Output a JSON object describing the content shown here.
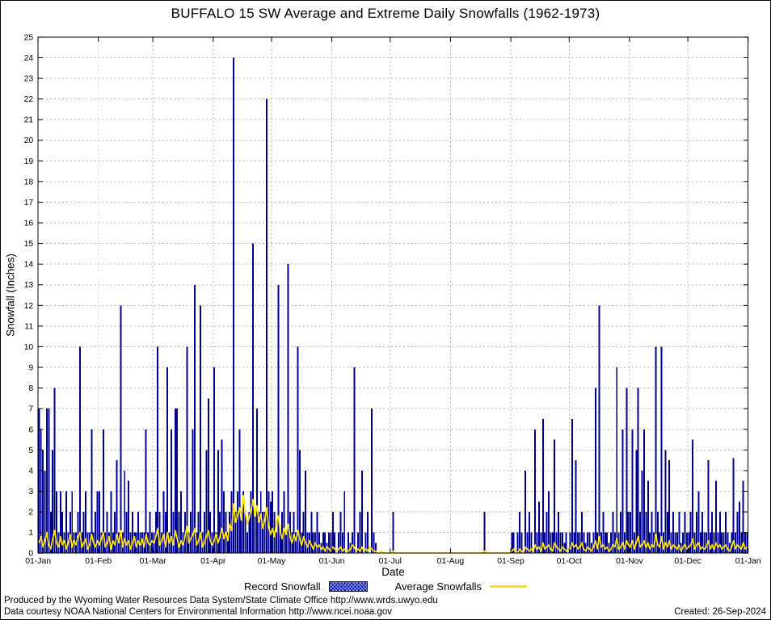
{
  "chart_data": {
    "type": "bar",
    "title": "BUFFALO 15 SW Average and Extreme Daily Snowfalls (1962-1973)",
    "xlabel": "Date",
    "ylabel": "Snowfall (Inches)",
    "ylim": [
      0,
      25
    ],
    "y_tick_step": 1,
    "grid": true,
    "legend_position": "bottom",
    "days_in_year": 365,
    "x_tick_labels": [
      "01-Jan",
      "01-Feb",
      "01-Mar",
      "01-Apr",
      "01-May",
      "01-Jun",
      "01-Jul",
      "01-Aug",
      "01-Sep",
      "01-Oct",
      "01-Nov",
      "01-Dec",
      "01-Jan"
    ],
    "x_tick_days": [
      0,
      31,
      59,
      90,
      120,
      151,
      181,
      212,
      243,
      273,
      304,
      334,
      365
    ],
    "series": [
      {
        "name": "Record Snowfall",
        "type": "bar",
        "color": "#000090",
        "values": [
          7,
          6,
          5,
          4,
          7,
          7,
          2,
          5,
          8,
          3,
          1,
          3,
          2,
          1,
          3,
          1,
          2,
          3,
          1,
          1,
          2,
          10,
          1,
          2,
          3,
          1,
          1,
          6,
          1,
          2,
          3,
          3,
          1,
          6,
          1,
          2,
          1,
          3,
          1,
          2,
          4.5,
          1,
          12,
          1,
          4,
          2,
          3.5,
          1,
          2,
          1,
          1,
          2,
          1,
          1,
          1,
          6,
          1,
          2,
          1,
          1,
          2,
          10,
          2,
          1,
          3,
          2,
          9,
          1,
          6,
          2,
          7,
          7,
          2,
          3,
          1,
          2,
          10,
          1,
          2,
          6,
          13,
          1,
          2,
          12,
          1,
          2,
          5,
          7.5,
          2,
          1,
          9,
          1,
          5,
          2,
          5.5,
          3,
          2,
          1,
          2,
          3,
          24,
          2,
          3,
          6,
          2,
          3,
          2,
          1,
          2,
          3,
          15,
          2,
          7,
          2,
          3,
          2,
          2,
          22,
          3,
          2.5,
          3,
          2,
          1,
          13,
          1,
          2,
          3,
          1,
          14,
          2,
          1,
          2,
          1,
          10,
          5,
          1,
          2,
          4,
          1,
          1,
          2,
          1,
          1,
          2,
          1,
          0.5,
          1,
          1,
          0.5,
          1,
          1,
          2,
          1,
          0,
          1,
          2,
          1,
          3,
          0,
          1,
          0.5,
          1,
          9,
          0,
          1,
          2,
          4,
          0,
          1,
          2,
          0,
          7,
          1,
          0.5,
          0,
          0,
          0,
          0,
          0,
          0,
          0,
          0,
          2,
          0,
          0,
          0,
          0,
          0,
          0,
          0,
          0,
          0,
          0,
          0,
          0,
          0,
          0,
          0,
          0,
          0,
          0,
          0,
          0,
          0,
          0,
          0,
          0,
          0,
          0,
          0,
          0,
          0,
          0,
          0,
          0,
          0,
          0,
          0,
          0,
          0,
          0,
          0,
          0,
          0,
          0,
          0,
          0,
          0,
          0,
          2,
          0,
          0,
          0,
          0,
          0,
          0,
          0,
          0,
          0,
          0,
          0,
          0,
          0,
          1,
          1,
          0,
          1,
          2,
          1,
          0,
          4,
          1,
          2,
          1,
          0,
          6,
          1,
          2.5,
          1,
          6.5,
          1,
          2,
          3,
          1,
          1,
          5.5,
          1,
          2,
          1,
          1,
          0.5,
          1,
          0,
          1,
          6.5,
          1,
          4.5,
          1,
          1,
          2,
          1,
          0.5,
          1,
          1,
          0.5,
          1,
          8,
          1,
          12,
          1,
          2,
          1,
          1,
          0.5,
          1,
          2,
          1,
          9,
          1,
          2,
          6,
          1,
          8,
          2,
          2,
          6,
          1,
          5,
          8,
          2,
          4,
          6,
          2,
          3.5,
          1,
          2,
          1,
          10,
          2,
          1,
          10,
          1,
          5,
          2,
          4.5,
          1,
          2,
          1,
          1,
          2,
          0.5,
          1,
          2,
          1,
          1,
          2,
          5.5,
          1,
          2,
          3,
          1,
          2,
          1,
          1,
          4.5,
          1,
          2,
          1,
          3.5,
          1,
          2,
          1,
          1,
          2,
          1,
          0.5,
          1,
          4.6,
          1,
          2,
          2.5,
          1,
          3.5,
          1,
          1
        ]
      },
      {
        "name": "Average Snowfalls",
        "type": "line",
        "color": "#ffe400",
        "values": [
          0.5,
          0.8,
          0.3,
          0.6,
          1.0,
          0.4,
          0.2,
          0.7,
          1.1,
          0.5,
          0.3,
          0.8,
          0.4,
          0.6,
          0.2,
          0.5,
          0.9,
          0.3,
          0.6,
          0.4,
          0.8,
          1.0,
          0.3,
          0.5,
          0.7,
          0.2,
          0.4,
          0.9,
          0.5,
          0.3,
          0.6,
          0.4,
          0.7,
          1.0,
          0.3,
          0.5,
          0.8,
          0.2,
          0.6,
          0.4,
          0.9,
          0.5,
          1.1,
          0.3,
          0.7,
          0.4,
          0.6,
          0.2,
          0.5,
          0.8,
          0.3,
          0.6,
          0.4,
          0.7,
          0.3,
          0.9,
          0.5,
          0.4,
          0.6,
          0.5,
          0.8,
          1.2,
          0.4,
          0.6,
          0.9,
          0.3,
          1.0,
          0.5,
          0.8,
          0.4,
          1.1,
          0.7,
          0.3,
          0.6,
          0.4,
          0.8,
          1.3,
          0.5,
          0.7,
          0.9,
          1.2,
          0.4,
          0.6,
          1.0,
          0.3,
          0.5,
          0.8,
          1.1,
          0.6,
          0.4,
          0.6,
          0.9,
          0.5,
          0.8,
          1.2,
          0.7,
          1.0,
          0.6,
          1.4,
          1.1,
          2.4,
          1.5,
          1.8,
          2.2,
          1.6,
          2.8,
          2.0,
          1.4,
          1.7,
          2.1,
          2.6,
          1.8,
          2.3,
          1.5,
          1.9,
          1.2,
          1.6,
          2.2,
          1.3,
          0.9,
          1.2,
          0.8,
          1.5,
          1.8,
          1.0,
          0.7,
          1.2,
          0.9,
          1.4,
          0.8,
          0.5,
          0.9,
          0.6,
          1.1,
          0.7,
          0.4,
          0.8,
          0.5,
          0.3,
          0.6,
          0.4,
          0.2,
          0.5,
          0.3,
          0.4,
          0.2,
          0.3,
          0.1,
          0.3,
          0.2,
          0.1,
          0.3,
          0.2,
          0.1,
          0.2,
          0.3,
          0.1,
          0.2,
          0.1,
          0.1,
          0.2,
          0.4,
          0.3,
          0.1,
          0.2,
          0.1,
          0.3,
          0.1,
          0.2,
          0.1,
          0.3,
          0.2,
          0.1,
          0.1,
          0,
          0,
          0.1,
          0,
          0,
          0,
          0,
          0,
          0.1,
          0,
          0,
          0,
          0,
          0,
          0,
          0,
          0,
          0,
          0,
          0,
          0,
          0,
          0,
          0,
          0,
          0,
          0,
          0,
          0,
          0,
          0,
          0,
          0,
          0,
          0,
          0,
          0,
          0,
          0,
          0,
          0,
          0,
          0,
          0,
          0,
          0,
          0,
          0,
          0,
          0,
          0,
          0,
          0,
          0,
          0,
          0.1,
          0,
          0,
          0,
          0,
          0,
          0,
          0,
          0,
          0,
          0,
          0,
          0,
          0,
          0.1,
          0.2,
          0.1,
          0,
          0.2,
          0.1,
          0,
          0.3,
          0.2,
          0.1,
          0.2,
          0.1,
          0.4,
          0.2,
          0.3,
          0.1,
          0.5,
          0.2,
          0.3,
          0.4,
          0.2,
          0.1,
          0.5,
          0.3,
          0.2,
          0.1,
          0.3,
          0.2,
          0.1,
          0.2,
          0.2,
          0.5,
          0.3,
          0.4,
          0.2,
          0.3,
          0.5,
          0.2,
          0.1,
          0.3,
          0.2,
          0.1,
          0.3,
          0.6,
          0.2,
          0.8,
          0.3,
          0.4,
          0.2,
          0.3,
          0.1,
          0.2,
          0.4,
          0.3,
          0.7,
          0.2,
          0.3,
          0.5,
          0.2,
          0.6,
          0.4,
          0.3,
          0.6,
          0.2,
          0.5,
          0.8,
          0.3,
          0.4,
          0.6,
          0.3,
          0.5,
          0.2,
          0.4,
          0.3,
          0.9,
          0.4,
          0.3,
          0.8,
          0.2,
          0.5,
          0.3,
          0.6,
          0.2,
          0.4,
          0.3,
          0.2,
          0.4,
          0.1,
          0.3,
          0.4,
          0.2,
          0.3,
          0.4,
          0.7,
          0.2,
          0.4,
          0.5,
          0.2,
          0.3,
          0.2,
          0.3,
          0.6,
          0.2,
          0.4,
          0.2,
          0.5,
          0.3,
          0.4,
          0.2,
          0.3,
          0.4,
          0.2,
          0.1,
          0.3,
          0.6,
          0.2,
          0.4,
          0.3,
          0.2,
          0.5,
          0.2,
          0.3
        ]
      }
    ]
  },
  "colors": {
    "record": "#000090",
    "average": "#ffe400",
    "grid": "#b6b6b6",
    "axis": "#000000",
    "background": "#ffffff"
  },
  "footer": {
    "line1": "Produced by the Wyoming Water Resources Data System/State Climate Office http://www.wrds.uwyo.edu",
    "line2": "Data courtesy NOAA National Centers for Environmental Information http://www.ncei.noaa.gov",
    "created": "Created: 26-Sep-2024"
  }
}
